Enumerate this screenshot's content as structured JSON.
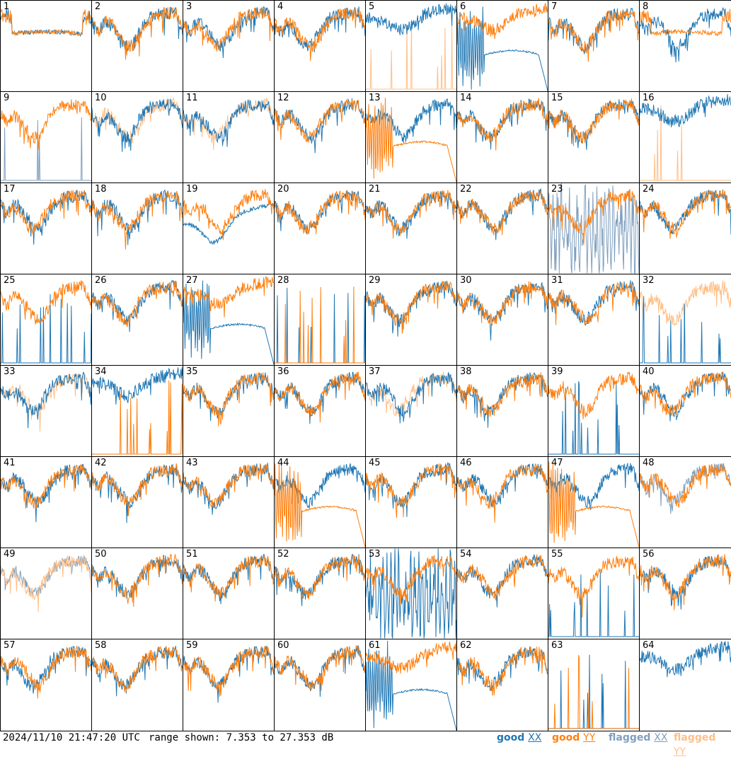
{
  "chart_data": {
    "type": "line",
    "grid": {
      "rows": 8,
      "cols": 8
    },
    "panels": [
      {
        "id": "1",
        "xx": "good",
        "yy": "good",
        "xx_shape": "flat",
        "yy_shape": "flat"
      },
      {
        "id": "2",
        "xx": "good",
        "yy": "good",
        "xx_shape": "normal",
        "yy_shape": "normal"
      },
      {
        "id": "3",
        "xx": "good",
        "yy": "good",
        "xx_shape": "normal",
        "yy_shape": "normal"
      },
      {
        "id": "4",
        "xx": "good",
        "yy": "good",
        "xx_shape": "normal",
        "yy_shape": "normal"
      },
      {
        "id": "5",
        "xx": "good",
        "yy": "flagged",
        "xx_shape": "high",
        "yy_shape": "spikes"
      },
      {
        "id": "6",
        "xx": "good",
        "yy": "good",
        "xx_shape": "dead",
        "yy_shape": "high"
      },
      {
        "id": "7",
        "xx": "good",
        "yy": "good",
        "xx_shape": "normal",
        "yy_shape": "normal"
      },
      {
        "id": "8",
        "xx": "good",
        "yy": "good",
        "xx_shape": "normal",
        "yy_shape": "flat"
      },
      {
        "id": "9",
        "xx": "flagged",
        "yy": "good",
        "xx_shape": "spikes",
        "yy_shape": "normal"
      },
      {
        "id": "10",
        "xx": "good",
        "yy": "flagged",
        "xx_shape": "normal",
        "yy_shape": "normal"
      },
      {
        "id": "11",
        "xx": "good",
        "yy": "flagged",
        "xx_shape": "normal",
        "yy_shape": "normal"
      },
      {
        "id": "12",
        "xx": "good",
        "yy": "good",
        "xx_shape": "normal",
        "yy_shape": "normal"
      },
      {
        "id": "13",
        "xx": "good",
        "yy": "good",
        "xx_shape": "normal",
        "yy_shape": "dead"
      },
      {
        "id": "14",
        "xx": "good",
        "yy": "good",
        "xx_shape": "normal",
        "yy_shape": "normal"
      },
      {
        "id": "15",
        "xx": "good",
        "yy": "good",
        "xx_shape": "normal",
        "yy_shape": "normal"
      },
      {
        "id": "16",
        "xx": "good",
        "yy": "flagged",
        "xx_shape": "high",
        "yy_shape": "spikes"
      },
      {
        "id": "17",
        "xx": "good",
        "yy": "good",
        "xx_shape": "normal",
        "yy_shape": "normal"
      },
      {
        "id": "18",
        "xx": "good",
        "yy": "good",
        "xx_shape": "normal",
        "yy_shape": "normal"
      },
      {
        "id": "19",
        "xx": "good",
        "yy": "good",
        "xx_shape": "low",
        "yy_shape": "normal"
      },
      {
        "id": "20",
        "xx": "good",
        "yy": "good",
        "xx_shape": "normal",
        "yy_shape": "normal"
      },
      {
        "id": "21",
        "xx": "good",
        "yy": "good",
        "xx_shape": "normal",
        "yy_shape": "normal"
      },
      {
        "id": "22",
        "xx": "good",
        "yy": "good",
        "xx_shape": "normal",
        "yy_shape": "normal"
      },
      {
        "id": "23",
        "xx": "flagged",
        "yy": "good",
        "xx_shape": "noisy",
        "yy_shape": "normal"
      },
      {
        "id": "24",
        "xx": "good",
        "yy": "good",
        "xx_shape": "normal",
        "yy_shape": "normal"
      },
      {
        "id": "25",
        "xx": "good",
        "yy": "good",
        "xx_shape": "spikes",
        "yy_shape": "normal"
      },
      {
        "id": "26",
        "xx": "good",
        "yy": "good",
        "xx_shape": "normal",
        "yy_shape": "normal"
      },
      {
        "id": "27",
        "xx": "good",
        "yy": "good",
        "xx_shape": "dead",
        "yy_shape": "high"
      },
      {
        "id": "28",
        "xx": "good",
        "yy": "good",
        "xx_shape": "spikes",
        "yy_shape": "spikes"
      },
      {
        "id": "29",
        "xx": "good",
        "yy": "good",
        "xx_shape": "normal",
        "yy_shape": "normal"
      },
      {
        "id": "30",
        "xx": "good",
        "yy": "good",
        "xx_shape": "normal",
        "yy_shape": "normal"
      },
      {
        "id": "31",
        "xx": "good",
        "yy": "good",
        "xx_shape": "normal",
        "yy_shape": "normal"
      },
      {
        "id": "32",
        "xx": "good",
        "yy": "flagged",
        "xx_shape": "spikes",
        "yy_shape": "normal"
      },
      {
        "id": "33",
        "xx": "good",
        "yy": "flagged",
        "xx_shape": "normal",
        "yy_shape": "normal"
      },
      {
        "id": "34",
        "xx": "good",
        "yy": "good",
        "xx_shape": "high",
        "yy_shape": "spikes"
      },
      {
        "id": "35",
        "xx": "good",
        "yy": "good",
        "xx_shape": "normal",
        "yy_shape": "normal"
      },
      {
        "id": "36",
        "xx": "good",
        "yy": "good",
        "xx_shape": "normal",
        "yy_shape": "normal"
      },
      {
        "id": "37",
        "xx": "good",
        "yy": "flagged",
        "xx_shape": "normal",
        "yy_shape": "normal"
      },
      {
        "id": "38",
        "xx": "good",
        "yy": "good",
        "xx_shape": "normal",
        "yy_shape": "normal"
      },
      {
        "id": "39",
        "xx": "good",
        "yy": "good",
        "xx_shape": "spikes",
        "yy_shape": "normal"
      },
      {
        "id": "40",
        "xx": "good",
        "yy": "good",
        "xx_shape": "normal",
        "yy_shape": "normal"
      },
      {
        "id": "41",
        "xx": "good",
        "yy": "good",
        "xx_shape": "normal",
        "yy_shape": "normal"
      },
      {
        "id": "42",
        "xx": "good",
        "yy": "good",
        "xx_shape": "normal",
        "yy_shape": "normal"
      },
      {
        "id": "43",
        "xx": "good",
        "yy": "good",
        "xx_shape": "normal",
        "yy_shape": "normal"
      },
      {
        "id": "44",
        "xx": "good",
        "yy": "good",
        "xx_shape": "normal",
        "yy_shape": "dead"
      },
      {
        "id": "45",
        "xx": "good",
        "yy": "good",
        "xx_shape": "normal",
        "yy_shape": "normal"
      },
      {
        "id": "46",
        "xx": "good",
        "yy": "good",
        "xx_shape": "normal",
        "yy_shape": "normal"
      },
      {
        "id": "47",
        "xx": "good",
        "yy": "good",
        "xx_shape": "normal",
        "yy_shape": "dead"
      },
      {
        "id": "48",
        "xx": "flagged",
        "yy": "good",
        "xx_shape": "normal",
        "yy_shape": "normal"
      },
      {
        "id": "49",
        "xx": "flagged",
        "yy": "flagged",
        "xx_shape": "normal",
        "yy_shape": "normal"
      },
      {
        "id": "50",
        "xx": "good",
        "yy": "good",
        "xx_shape": "normal",
        "yy_shape": "normal"
      },
      {
        "id": "51",
        "xx": "good",
        "yy": "good",
        "xx_shape": "normal",
        "yy_shape": "normal"
      },
      {
        "id": "52",
        "xx": "good",
        "yy": "good",
        "xx_shape": "normal",
        "yy_shape": "normal"
      },
      {
        "id": "53",
        "xx": "good",
        "yy": "good",
        "xx_shape": "noisy",
        "yy_shape": "normal"
      },
      {
        "id": "54",
        "xx": "good",
        "yy": "good",
        "xx_shape": "normal",
        "yy_shape": "normal"
      },
      {
        "id": "55",
        "xx": "good",
        "yy": "good",
        "xx_shape": "spikes",
        "yy_shape": "normal"
      },
      {
        "id": "56",
        "xx": "good",
        "yy": "good",
        "xx_shape": "normal",
        "yy_shape": "normal"
      },
      {
        "id": "57",
        "xx": "good",
        "yy": "good",
        "xx_shape": "normal",
        "yy_shape": "normal"
      },
      {
        "id": "58",
        "xx": "good",
        "yy": "good",
        "xx_shape": "normal",
        "yy_shape": "normal"
      },
      {
        "id": "59",
        "xx": "good",
        "yy": "good",
        "xx_shape": "normal",
        "yy_shape": "normal"
      },
      {
        "id": "60",
        "xx": "good",
        "yy": "good",
        "xx_shape": "normal",
        "yy_shape": "normal"
      },
      {
        "id": "61",
        "xx": "good",
        "yy": "good",
        "xx_shape": "dead",
        "yy_shape": "high"
      },
      {
        "id": "62",
        "xx": "good",
        "yy": "good",
        "xx_shape": "normal",
        "yy_shape": "normal"
      },
      {
        "id": "63",
        "xx": "good",
        "yy": "good",
        "xx_shape": "spikes",
        "yy_shape": "spikes"
      },
      {
        "id": "64",
        "xx": "good",
        "yy": "good",
        "xx_shape": "high",
        "yy_shape": "none"
      }
    ]
  },
  "footer": {
    "timestamp": "2024/11/10 21:47:20 UTC",
    "range_text": "range shown: 7.353 to 27.353 dB"
  },
  "legend": [
    {
      "state": "good",
      "pol": "XX",
      "color": "#1f77b4"
    },
    {
      "state": "good",
      "pol": "YY",
      "color": "#ff7f0e"
    },
    {
      "state": "flagged",
      "pol": "XX",
      "color": "#7f9fbf"
    },
    {
      "state": "flagged",
      "pol": "YY",
      "color": "#ffbf87"
    }
  ],
  "colors": {
    "good_xx": "#1f77b4",
    "good_yy": "#ff7f0e",
    "flagged_xx": "#7f9fbf",
    "flagged_yy": "#ffbf87"
  }
}
